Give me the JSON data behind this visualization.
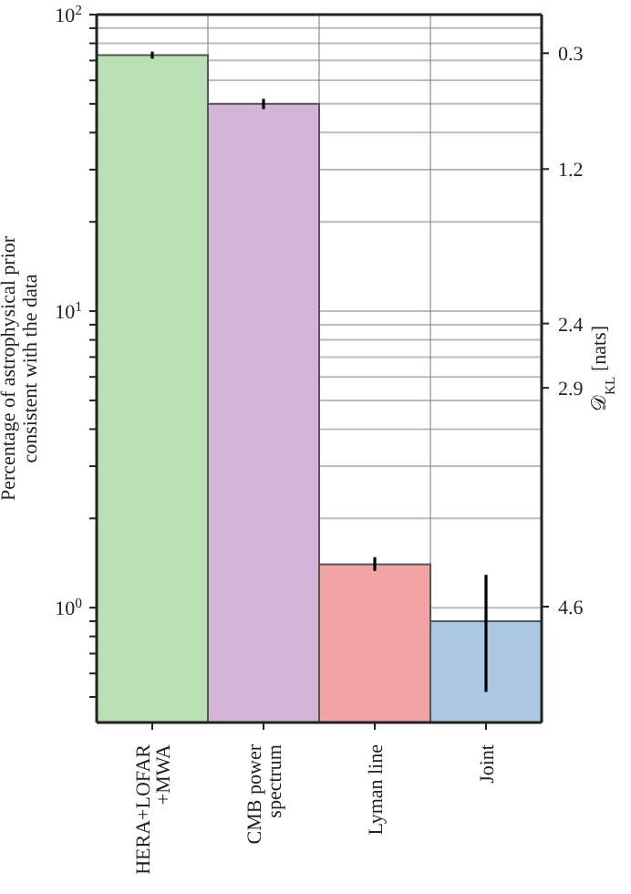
{
  "chart_data": {
    "type": "bar",
    "ylabel": "Percentage of astrophysical prior\nconsistent with the data",
    "y2label": "𝒟$_{KL}$ [nats]",
    "categories": [
      "HERA+LOFAR\n+MWA",
      "CMB power\nspectrum",
      "Lyman line",
      "Joint"
    ],
    "values": [
      73,
      50,
      1.4,
      0.9
    ],
    "colors": [
      "#b9dfb5",
      "#d5b4d9",
      "#f2a3a3",
      "#abc8e2"
    ],
    "errors": [
      [
        71,
        75
      ],
      [
        48,
        52
      ],
      [
        1.33,
        1.48
      ],
      [
        0.52,
        1.29
      ]
    ],
    "log": "y",
    "ylim": [
      0.41,
      100
    ],
    "yticks": [
      {
        "value": 0.5,
        "label": null
      },
      {
        "value": 0.6,
        "label": null
      },
      {
        "value": 0.7,
        "label": null
      },
      {
        "value": 0.8,
        "label": null
      },
      {
        "value": 0.9,
        "label": null
      },
      {
        "value": 1,
        "label": "10$^{0}$"
      },
      {
        "value": 2,
        "label": null
      },
      {
        "value": 3,
        "label": null
      },
      {
        "value": 4,
        "label": null
      },
      {
        "value": 5,
        "label": null
      },
      {
        "value": 6,
        "label": null
      },
      {
        "value": 7,
        "label": null
      },
      {
        "value": 8,
        "label": null
      },
      {
        "value": 9,
        "label": null
      },
      {
        "value": 10,
        "label": "10$^{1}$"
      },
      {
        "value": 20,
        "label": null
      },
      {
        "value": 30,
        "label": null
      },
      {
        "value": 40,
        "label": null
      },
      {
        "value": 50,
        "label": null
      },
      {
        "value": 60,
        "label": null
      },
      {
        "value": 70,
        "label": null
      },
      {
        "value": 80,
        "label": null
      },
      {
        "value": 90,
        "label": null
      },
      {
        "value": 100,
        "label": "10$^{2}$"
      }
    ],
    "y2lim": [
      5.5,
      0
    ],
    "y2ticks": [
      0.3,
      1.2,
      2.4,
      2.9,
      4.6
    ],
    "grid": true
  }
}
